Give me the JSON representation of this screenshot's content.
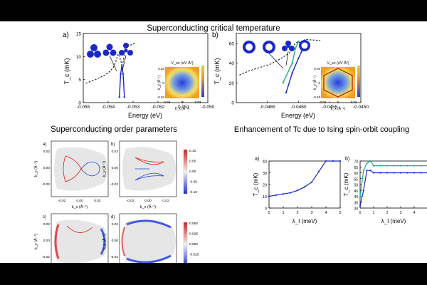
{
  "slide": {
    "main_title": "Superconducting critical temperature",
    "order_title": "Superconducting order parameters",
    "ising_title": "Enhancement of Tc due to Ising spin-orbit coupling"
  },
  "panels": {
    "a_label": "a)",
    "b_label": "b)"
  },
  "colors": {
    "blue": "#1a28c8",
    "teal": "#19b08a",
    "pos": "#e02020",
    "neg": "#2040e0"
  },
  "chart_data": [
    {
      "id": "tc_a",
      "type": "line",
      "xlabel": "Energy (eV)",
      "ylabel": "T_c (mK)",
      "xlim": [
        -0.055,
        -0.05
      ],
      "ylim": [
        0,
        15
      ],
      "xticks": [
        "-0.055",
        "-0.054",
        "-0.053",
        "-0.052",
        "-0.051",
        "-0.050"
      ],
      "yticks": [
        "0",
        "5",
        "10",
        "15"
      ],
      "series": [
        {
          "style": "dashed",
          "x": [
            -0.0549,
            -0.0545,
            -0.0542,
            -0.054,
            -0.0538,
            -0.0537,
            -0.0536,
            -0.05355,
            -0.0535,
            -0.05345,
            -0.0534,
            -0.05335,
            -0.0533,
            -0.0532,
            -0.0531,
            -0.053,
            -0.0529
          ],
          "y": [
            4.2,
            5.0,
            5.8,
            6.4,
            7.6,
            8.8,
            10.6,
            10.0,
            9.2,
            8.2,
            8.8,
            10.6,
            12.5,
            12.6,
            12.5,
            12.7,
            12.8
          ]
        },
        {
          "style": "solid",
          "x": [
            -0.05355,
            -0.0535,
            -0.05345,
            -0.0534,
            -0.05335
          ],
          "y": [
            1.2,
            6.2,
            8.0,
            6.2,
            1.2
          ]
        }
      ],
      "inset": {
        "title": "V_sc (eV Å²)",
        "xlabel": "k_x (Å⁻¹)",
        "ylabel": "k_y (Å⁻¹)",
        "xticks": [
          "-0.03",
          "0",
          "0.03"
        ],
        "yticks": [
          "-0.03",
          "0",
          "0.03"
        ]
      }
    },
    {
      "id": "tc_b",
      "type": "line",
      "xlabel": "Energy (eV)",
      "ylabel": "T_c (mK)",
      "xlim": [
        -0.047,
        -0.045
      ],
      "ylim": [
        0,
        70
      ],
      "xticks": [
        "-0.0465",
        "-0.0460",
        "-0.0455",
        "-0.0450"
      ],
      "yticks": [
        "0",
        "20",
        "40",
        "60"
      ],
      "series": [
        {
          "style": "dashed",
          "x": [
            -0.04695,
            -0.0468,
            -0.0466,
            -0.04645,
            -0.0463,
            -0.04615,
            -0.0461,
            -0.04605,
            -0.046,
            -0.04595,
            -0.0459,
            -0.0458,
            -0.04565
          ],
          "y": [
            28,
            32,
            36,
            39,
            44,
            50,
            56,
            60,
            62,
            58,
            64,
            63.5,
            63
          ]
        },
        {
          "style": "solid-teal",
          "x": [
            -0.04625,
            -0.0461,
            -0.04605,
            -0.046
          ],
          "y": [
            20,
            40,
            55,
            62
          ]
        },
        {
          "style": "solid-blue",
          "x": [
            -0.0462,
            -0.0461,
            -0.046,
            -0.04595
          ],
          "y": [
            10,
            30,
            45,
            52
          ]
        }
      ],
      "inset": {
        "title": "V_sc (eV Å²)",
        "xlabel": "k_x (Å⁻¹)",
        "ylabel": "k_y (Å⁻¹)",
        "xticks": [
          "-0.03",
          "0",
          "0.03"
        ],
        "yticks": [
          "-0.03",
          "0",
          "0.03"
        ]
      }
    },
    {
      "id": "ising_a",
      "type": "line",
      "xlabel": "λ_I (meV)",
      "ylabel": "T_c (mK)",
      "xlim": [
        0,
        5
      ],
      "ylim": [
        0,
        40
      ],
      "xticks": [
        "0",
        "1",
        "2",
        "3",
        "4",
        "5"
      ],
      "yticks": [
        "0",
        "10",
        "20",
        "30",
        "40"
      ],
      "series": [
        {
          "color": "blue",
          "x": [
            0,
            0.5,
            1,
            1.5,
            2,
            2.5,
            3,
            3.5,
            4,
            4.5,
            5
          ],
          "y": [
            10,
            11,
            12,
            13,
            15,
            18,
            22,
            31,
            40,
            40,
            40
          ]
        }
      ]
    },
    {
      "id": "ising_b",
      "type": "line",
      "xlabel": "λ_I (meV)",
      "ylabel": "T_c (mK)",
      "xlim": [
        0,
        5
      ],
      "ylim": [
        30,
        70
      ],
      "xticks": [
        "0",
        "1",
        "2",
        "3",
        "4",
        "5"
      ],
      "yticks": [
        "30",
        "35",
        "40",
        "45",
        "50",
        "55",
        "60",
        "65",
        "70"
      ],
      "series": [
        {
          "color": "teal",
          "x": [
            0,
            0.25,
            0.5,
            0.75,
            1,
            1.5,
            2,
            2.5,
            3,
            3.5,
            4,
            4.5,
            5
          ],
          "y": [
            40,
            62,
            68,
            70,
            66,
            66,
            66,
            66,
            66,
            66,
            66,
            66,
            66
          ]
        },
        {
          "color": "blue",
          "x": [
            0,
            0.25,
            0.5,
            0.75,
            1,
            1.5,
            2,
            2.5,
            3,
            3.5,
            4,
            4.5,
            5
          ],
          "y": [
            32,
            45,
            62,
            62,
            60,
            60,
            60,
            60,
            60,
            60,
            60,
            60,
            60
          ]
        }
      ]
    }
  ],
  "order_params": {
    "ylabel": "k_y (Å⁻¹)",
    "xlabel": "k_x (Å⁻¹)",
    "xticks": [
      "-0.02",
      "0.00",
      "0.02"
    ],
    "yticks": [
      "0.02",
      "0.00",
      "-0.02"
    ],
    "labels": [
      "a)",
      "b)",
      "c)",
      "d)"
    ],
    "colorbar_top": [
      "0.10",
      "0.05",
      "0.00",
      "-0.05",
      "-0.10"
    ],
    "colorbar_bottom": [
      "0.050",
      "0.025",
      "0.000",
      "-0.025",
      "-0.050"
    ]
  },
  "ising_panels": {
    "a_label": "a)",
    "b_label": "b)"
  }
}
